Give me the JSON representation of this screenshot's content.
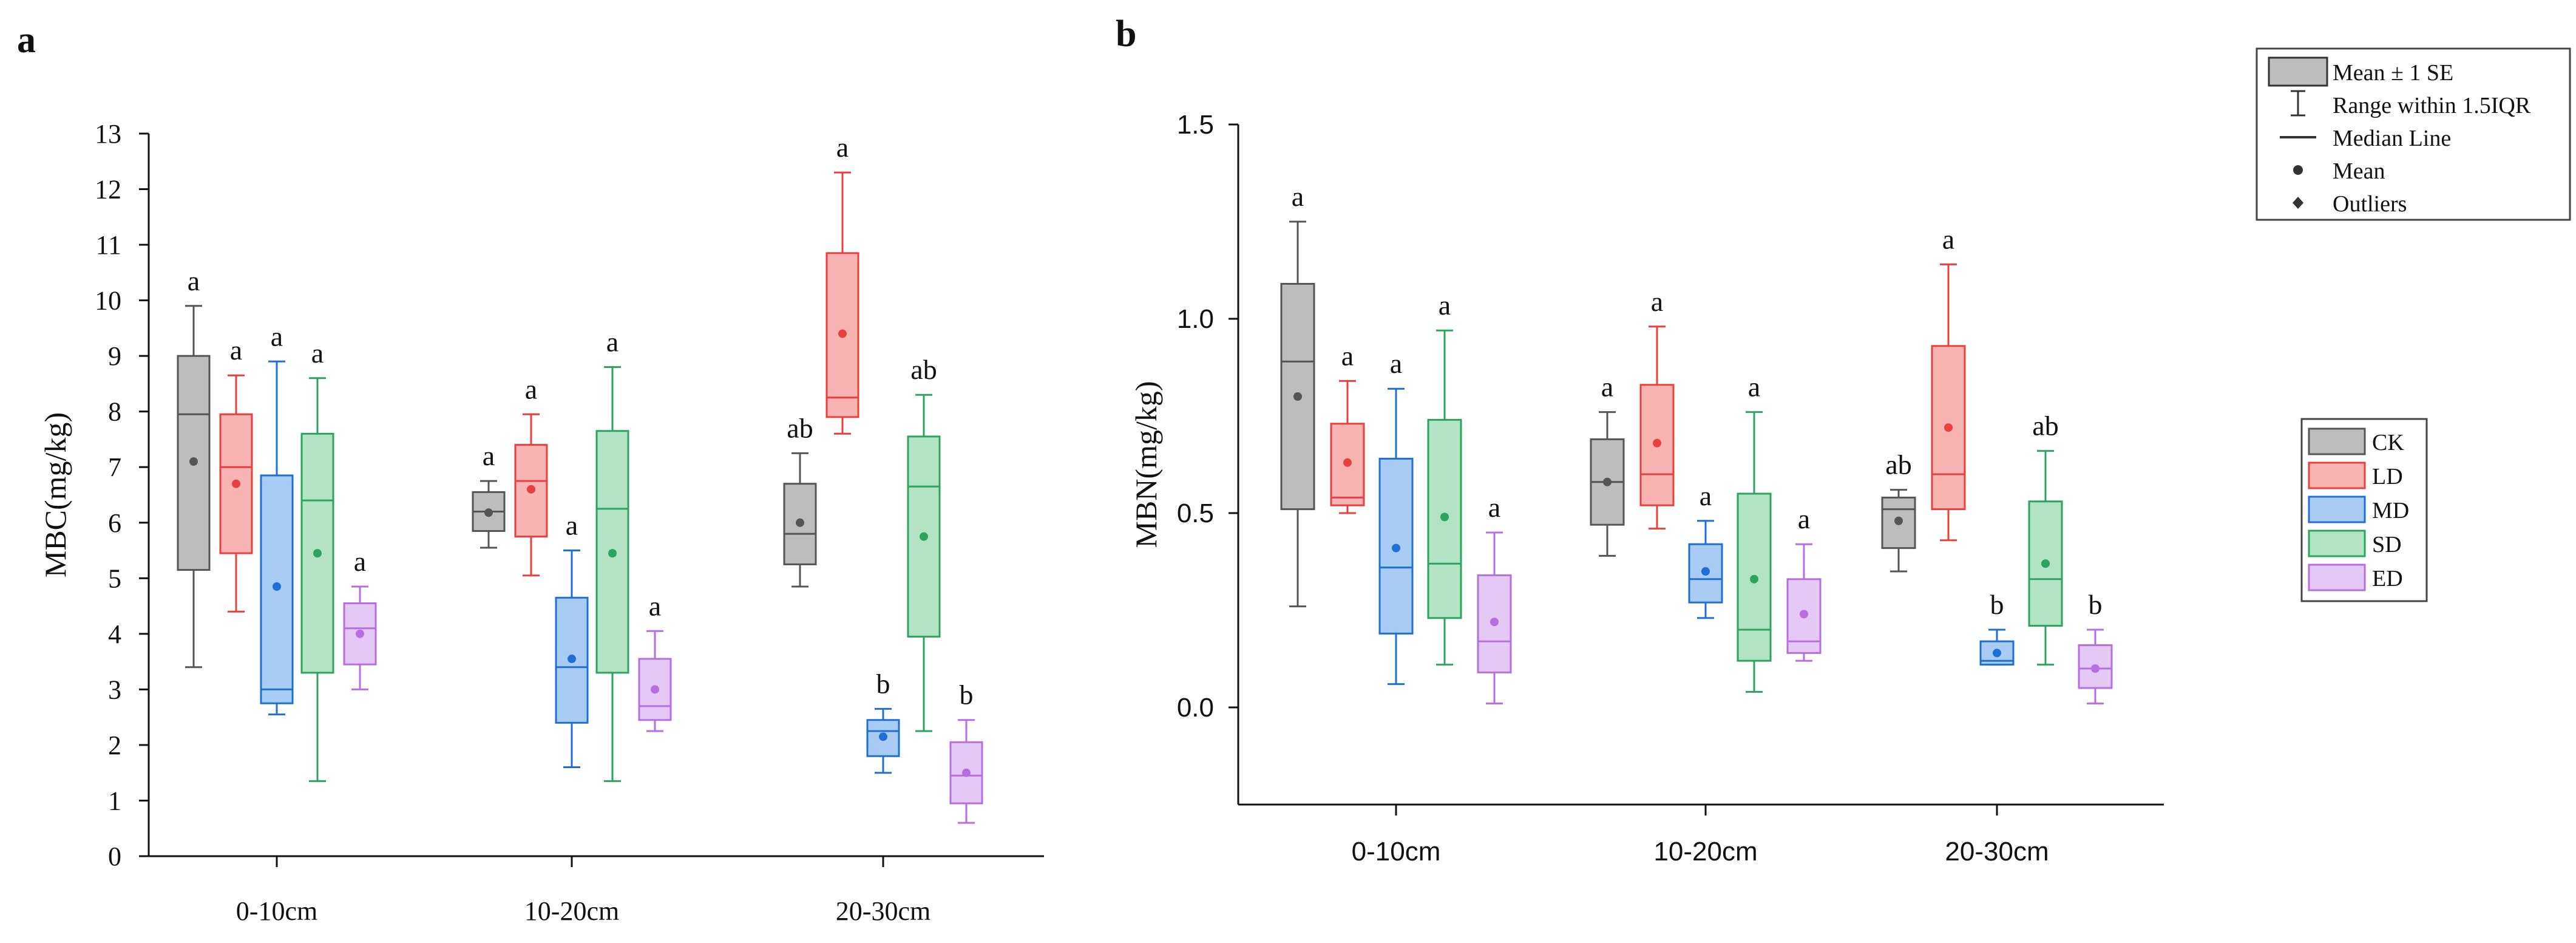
{
  "chart_data": [
    {
      "panel": "a",
      "type": "box",
      "ylabel": "MBC(mg/kg)",
      "ylim": [
        0,
        13
      ],
      "yticks": [
        0,
        1,
        2,
        3,
        4,
        5,
        6,
        7,
        8,
        9,
        10,
        11,
        12,
        13
      ],
      "categories": [
        "0-10cm",
        "10-20cm",
        "20-30cm"
      ],
      "series": [
        {
          "name": "CK",
          "color": "#555555",
          "fill": "#bdbdbd",
          "boxes": [
            {
              "min": 3.4,
              "q1": 5.15,
              "median": 7.95,
              "q3": 9.0,
              "max": 9.9,
              "mean": 7.1,
              "letter": "a"
            },
            {
              "min": 5.55,
              "q1": 5.85,
              "median": 6.2,
              "q3": 6.55,
              "max": 6.75,
              "mean": 6.18,
              "letter": "a"
            },
            {
              "min": 4.85,
              "q1": 5.25,
              "median": 5.8,
              "q3": 6.7,
              "max": 7.25,
              "mean": 6.0,
              "letter": "ab"
            }
          ]
        },
        {
          "name": "LD",
          "color": "#e8403f",
          "fill": "#f8b3b3",
          "boxes": [
            {
              "min": 4.4,
              "q1": 5.45,
              "median": 7.0,
              "q3": 7.95,
              "max": 8.65,
              "mean": 6.7,
              "letter": "a"
            },
            {
              "min": 5.05,
              "q1": 5.75,
              "median": 6.75,
              "q3": 7.4,
              "max": 7.95,
              "mean": 6.6,
              "letter": "a"
            },
            {
              "min": 7.6,
              "q1": 7.9,
              "median": 8.25,
              "q3": 10.85,
              "max": 12.3,
              "mean": 9.4,
              "letter": "a"
            }
          ]
        },
        {
          "name": "MD",
          "color": "#1f6fd6",
          "fill": "#a9ccf5",
          "boxes": [
            {
              "min": 2.55,
              "q1": 2.75,
              "median": 3.0,
              "q3": 6.85,
              "max": 8.9,
              "mean": 4.85,
              "letter": "a"
            },
            {
              "min": 1.6,
              "q1": 2.4,
              "median": 3.4,
              "q3": 4.65,
              "max": 5.5,
              "mean": 3.55,
              "letter": "a"
            },
            {
              "min": 1.5,
              "q1": 1.8,
              "median": 2.25,
              "q3": 2.45,
              "max": 2.65,
              "mean": 2.15,
              "letter": "b"
            }
          ]
        },
        {
          "name": "SD",
          "color": "#2ca45d",
          "fill": "#b3e3c5",
          "boxes": [
            {
              "min": 1.35,
              "q1": 3.3,
              "median": 6.4,
              "q3": 7.6,
              "max": 8.6,
              "mean": 5.45,
              "letter": "a"
            },
            {
              "min": 1.35,
              "q1": 3.3,
              "median": 6.25,
              "q3": 7.65,
              "max": 8.8,
              "mean": 5.45,
              "letter": "a"
            },
            {
              "min": 2.25,
              "q1": 3.95,
              "median": 6.65,
              "q3": 7.55,
              "max": 8.3,
              "mean": 5.75,
              "letter": "ab"
            }
          ]
        },
        {
          "name": "ED",
          "color": "#b66ee0",
          "fill": "#e4c8f6",
          "boxes": [
            {
              "min": 3.0,
              "q1": 3.45,
              "median": 4.1,
              "q3": 4.55,
              "max": 4.85,
              "mean": 4.0,
              "letter": "a"
            },
            {
              "min": 2.25,
              "q1": 2.45,
              "median": 2.7,
              "q3": 3.55,
              "max": 4.05,
              "mean": 3.0,
              "letter": "a"
            },
            {
              "min": 0.6,
              "q1": 0.95,
              "median": 1.45,
              "q3": 2.05,
              "max": 2.45,
              "mean": 1.5,
              "letter": "b"
            }
          ]
        }
      ]
    },
    {
      "panel": "b",
      "type": "box",
      "ylabel": "MBN(mg/kg)",
      "ylim": [
        -0.25,
        1.5
      ],
      "yticks": [
        0.0,
        0.5,
        1.0,
        1.5
      ],
      "yticklabels": [
        "0.0",
        "0.5",
        "1.0",
        "1.5"
      ],
      "categories": [
        "0-10cm",
        "10-20cm",
        "20-30cm"
      ],
      "series": [
        {
          "name": "CK",
          "color": "#555555",
          "fill": "#bdbdbd",
          "boxes": [
            {
              "min": 0.26,
              "q1": 0.51,
              "median": 0.89,
              "q3": 1.09,
              "max": 1.25,
              "mean": 0.8,
              "letter": "a"
            },
            {
              "min": 0.39,
              "q1": 0.47,
              "median": 0.58,
              "q3": 0.69,
              "max": 0.76,
              "mean": 0.58,
              "letter": "a"
            },
            {
              "min": 0.35,
              "q1": 0.41,
              "median": 0.51,
              "q3": 0.54,
              "max": 0.56,
              "mean": 0.48,
              "letter": "ab"
            }
          ]
        },
        {
          "name": "LD",
          "color": "#e8403f",
          "fill": "#f8b3b3",
          "boxes": [
            {
              "min": 0.5,
              "q1": 0.52,
              "median": 0.54,
              "q3": 0.73,
              "max": 0.84,
              "mean": 0.63,
              "letter": "a"
            },
            {
              "min": 0.46,
              "q1": 0.52,
              "median": 0.6,
              "q3": 0.83,
              "max": 0.98,
              "mean": 0.68,
              "letter": "a"
            },
            {
              "min": 0.43,
              "q1": 0.51,
              "median": 0.6,
              "q3": 0.93,
              "max": 1.14,
              "mean": 0.72,
              "letter": "a"
            }
          ]
        },
        {
          "name": "MD",
          "color": "#1f6fd6",
          "fill": "#a9ccf5",
          "boxes": [
            {
              "min": 0.06,
              "q1": 0.19,
              "median": 0.36,
              "q3": 0.64,
              "max": 0.82,
              "mean": 0.41,
              "letter": "a"
            },
            {
              "min": 0.23,
              "q1": 0.27,
              "median": 0.33,
              "q3": 0.42,
              "max": 0.48,
              "mean": 0.35,
              "letter": "a"
            },
            {
              "min": 0.11,
              "q1": 0.11,
              "median": 0.12,
              "q3": 0.17,
              "max": 0.2,
              "mean": 0.14,
              "letter": "b"
            }
          ]
        },
        {
          "name": "SD",
          "color": "#2ca45d",
          "fill": "#b3e3c5",
          "boxes": [
            {
              "min": 0.11,
              "q1": 0.23,
              "median": 0.37,
              "q3": 0.74,
              "max": 0.97,
              "mean": 0.49,
              "letter": "a"
            },
            {
              "min": 0.04,
              "q1": 0.12,
              "median": 0.2,
              "q3": 0.55,
              "max": 0.76,
              "mean": 0.33,
              "letter": "a"
            },
            {
              "min": 0.11,
              "q1": 0.21,
              "median": 0.33,
              "q3": 0.53,
              "max": 0.66,
              "mean": 0.37,
              "letter": "ab"
            }
          ]
        },
        {
          "name": "ED",
          "color": "#b66ee0",
          "fill": "#e4c8f6",
          "boxes": [
            {
              "min": 0.01,
              "q1": 0.09,
              "median": 0.17,
              "q3": 0.34,
              "max": 0.45,
              "mean": 0.22,
              "letter": "a"
            },
            {
              "min": 0.12,
              "q1": 0.14,
              "median": 0.17,
              "q3": 0.33,
              "max": 0.42,
              "mean": 0.24,
              "letter": "a"
            },
            {
              "min": 0.01,
              "q1": 0.05,
              "median": 0.1,
              "q3": 0.16,
              "max": 0.2,
              "mean": 0.1,
              "letter": "b"
            }
          ]
        }
      ]
    }
  ],
  "legend_stats": {
    "items": [
      "Mean ± 1 SE",
      "Range within 1.5IQR",
      "Median Line",
      "Mean",
      "Outliers"
    ]
  },
  "legend_groups": {
    "items": [
      "CK",
      "LD",
      "MD",
      "SD",
      "ED"
    ]
  }
}
